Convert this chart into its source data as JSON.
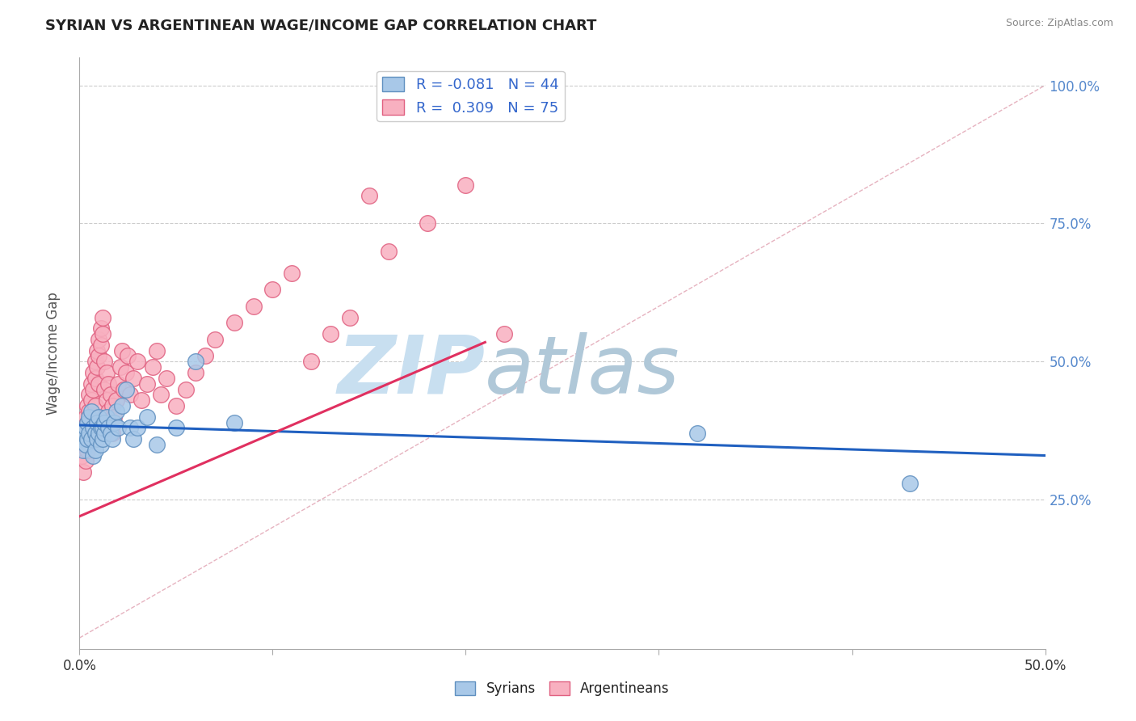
{
  "title": "SYRIAN VS ARGENTINEAN WAGE/INCOME GAP CORRELATION CHART",
  "source": "Source: ZipAtlas.com",
  "xlim": [
    0.0,
    0.5
  ],
  "ylim": [
    -0.02,
    1.05
  ],
  "y_tick_vals": [
    0.25,
    0.5,
    0.75,
    1.0
  ],
  "ylabel_ticks": [
    "25.0%",
    "50.0%",
    "75.0%",
    "100.0%"
  ],
  "x_tick_vals": [
    0.0,
    0.1,
    0.2,
    0.3,
    0.4,
    0.5
  ],
  "x_tick_labels": [
    "0.0%",
    "",
    "",
    "",
    "",
    "50.0%"
  ],
  "syrians_color": "#a8c8e8",
  "syrians_edge": "#6090c0",
  "argentineans_color": "#f8b0c0",
  "argentineans_edge": "#e06080",
  "syrian_trend_color": "#2060c0",
  "argentinean_trend_color": "#e03060",
  "ref_line_color": "#d0a0b0",
  "grid_color": "#cccccc",
  "bg_color": "#ffffff",
  "watermark_zip": "ZIP",
  "watermark_atlas": "atlas",
  "watermark_color_zip": "#c8dff0",
  "watermark_color_atlas": "#b0c8d8",
  "syrians_x": [
    0.001,
    0.002,
    0.002,
    0.003,
    0.003,
    0.004,
    0.004,
    0.005,
    0.005,
    0.006,
    0.006,
    0.007,
    0.007,
    0.008,
    0.008,
    0.009,
    0.009,
    0.01,
    0.01,
    0.011,
    0.011,
    0.012,
    0.012,
    0.013,
    0.013,
    0.014,
    0.015,
    0.016,
    0.017,
    0.018,
    0.019,
    0.02,
    0.022,
    0.024,
    0.026,
    0.028,
    0.03,
    0.035,
    0.04,
    0.05,
    0.06,
    0.08,
    0.32,
    0.43
  ],
  "syrians_y": [
    0.36,
    0.37,
    0.34,
    0.38,
    0.35,
    0.39,
    0.36,
    0.4,
    0.37,
    0.41,
    0.36,
    0.38,
    0.33,
    0.37,
    0.34,
    0.36,
    0.39,
    0.37,
    0.4,
    0.38,
    0.35,
    0.36,
    0.38,
    0.37,
    0.39,
    0.4,
    0.38,
    0.37,
    0.36,
    0.39,
    0.41,
    0.38,
    0.42,
    0.45,
    0.38,
    0.36,
    0.38,
    0.4,
    0.35,
    0.38,
    0.5,
    0.39,
    0.37,
    0.28
  ],
  "argentineans_x": [
    0.001,
    0.001,
    0.002,
    0.002,
    0.002,
    0.003,
    0.003,
    0.003,
    0.004,
    0.004,
    0.004,
    0.005,
    0.005,
    0.005,
    0.006,
    0.006,
    0.006,
    0.007,
    0.007,
    0.008,
    0.008,
    0.008,
    0.009,
    0.009,
    0.01,
    0.01,
    0.01,
    0.011,
    0.011,
    0.012,
    0.012,
    0.013,
    0.013,
    0.014,
    0.014,
    0.015,
    0.015,
    0.016,
    0.016,
    0.017,
    0.017,
    0.018,
    0.019,
    0.02,
    0.021,
    0.022,
    0.023,
    0.024,
    0.025,
    0.026,
    0.028,
    0.03,
    0.032,
    0.035,
    0.038,
    0.04,
    0.042,
    0.045,
    0.05,
    0.055,
    0.06,
    0.065,
    0.07,
    0.08,
    0.09,
    0.1,
    0.11,
    0.12,
    0.13,
    0.14,
    0.15,
    0.16,
    0.18,
    0.2,
    0.22
  ],
  "argentineans_y": [
    0.36,
    0.33,
    0.38,
    0.35,
    0.3,
    0.4,
    0.37,
    0.32,
    0.42,
    0.39,
    0.34,
    0.44,
    0.41,
    0.36,
    0.46,
    0.43,
    0.38,
    0.48,
    0.45,
    0.5,
    0.47,
    0.42,
    0.52,
    0.49,
    0.54,
    0.51,
    0.46,
    0.56,
    0.53,
    0.58,
    0.55,
    0.5,
    0.45,
    0.48,
    0.43,
    0.46,
    0.41,
    0.44,
    0.39,
    0.42,
    0.37,
    0.4,
    0.43,
    0.46,
    0.49,
    0.52,
    0.45,
    0.48,
    0.51,
    0.44,
    0.47,
    0.5,
    0.43,
    0.46,
    0.49,
    0.52,
    0.44,
    0.47,
    0.42,
    0.45,
    0.48,
    0.51,
    0.54,
    0.57,
    0.6,
    0.63,
    0.66,
    0.5,
    0.55,
    0.58,
    0.8,
    0.7,
    0.75,
    0.82,
    0.55
  ],
  "legend_r_syr": "R = -0.081",
  "legend_n_syr": "N = 44",
  "legend_r_arg": "R =  0.309",
  "legend_n_arg": "N = 75"
}
